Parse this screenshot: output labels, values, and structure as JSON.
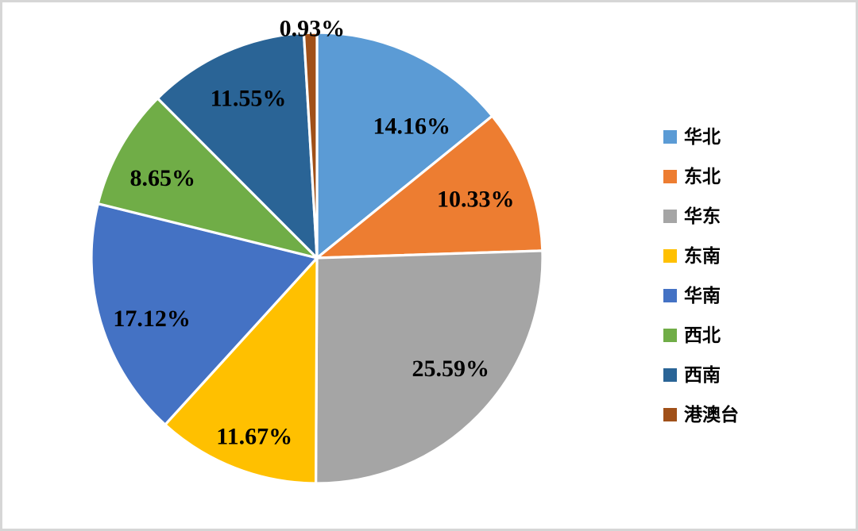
{
  "page": {
    "background": "#FFFFFF",
    "border_color": "#D6D6D6"
  },
  "chart_data": {
    "type": "pie",
    "title": "",
    "categories": [
      "华北",
      "东北",
      "华东",
      "东南",
      "华南",
      "西北",
      "西南",
      "港澳台"
    ],
    "values": [
      14.16,
      10.33,
      25.59,
      11.67,
      17.12,
      8.65,
      11.55,
      0.93
    ],
    "labels": [
      "14.16%",
      "10.33%",
      "25.59%",
      "11.67%",
      "17.12%",
      "8.65%",
      "11.55%",
      "0.93%"
    ],
    "colors": [
      "#5B9BD5",
      "#ED7D31",
      "#A5A5A5",
      "#FFC000",
      "#4472C4",
      "#70AD47",
      "#2A6496",
      "#A05019"
    ],
    "start_angle_deg": 0,
    "direction": "clockwise",
    "legend_position": "right",
    "slice_border_color": "#FFFFFF",
    "data_label_color": "#000000",
    "grid": false
  }
}
